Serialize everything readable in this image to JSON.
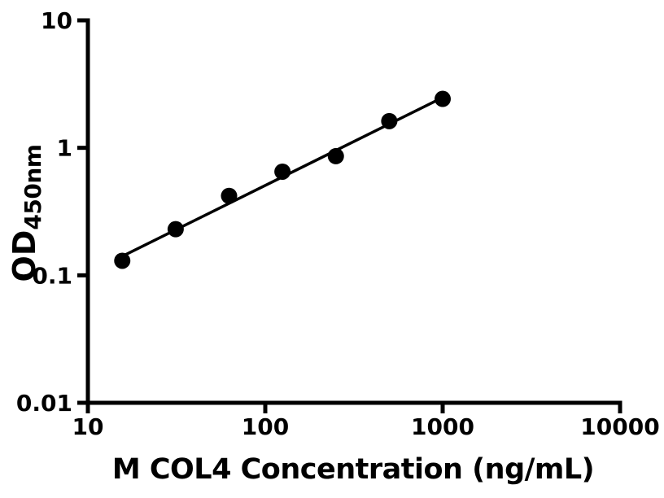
{
  "colors": {
    "foreground": "#000000",
    "background": "#ffffff"
  },
  "chart_data": {
    "type": "scatter",
    "title": "",
    "xlabel": "M COL4 Concentration (ng/mL)",
    "ylabel": "OD450nm",
    "ylabel_parts": {
      "main": "OD",
      "sub": "450nm"
    },
    "x_scale": "log",
    "y_scale": "log",
    "xlim": [
      10,
      10000
    ],
    "ylim": [
      0.01,
      10
    ],
    "x_ticks": [
      10,
      100,
      1000,
      10000
    ],
    "x_tick_labels": [
      "10",
      "100",
      "1000",
      "10000"
    ],
    "y_ticks": [
      10,
      1,
      0.1,
      0.01
    ],
    "y_tick_labels": [
      "10",
      "1",
      "0.1",
      "0.01"
    ],
    "grid": false,
    "legend": "none",
    "points": {
      "x": [
        15.625,
        31.25,
        62.5,
        125,
        250,
        500,
        1000
      ],
      "y": [
        0.13,
        0.23,
        0.42,
        0.65,
        0.86,
        1.62,
        2.42
      ]
    },
    "trend_line": {
      "x1": 15.625,
      "y1": 0.141,
      "x2": 1000,
      "y2": 2.48
    },
    "marker": {
      "shape": "circle",
      "color": "#000000",
      "radius_px": 10
    },
    "line_color": "#000000"
  }
}
